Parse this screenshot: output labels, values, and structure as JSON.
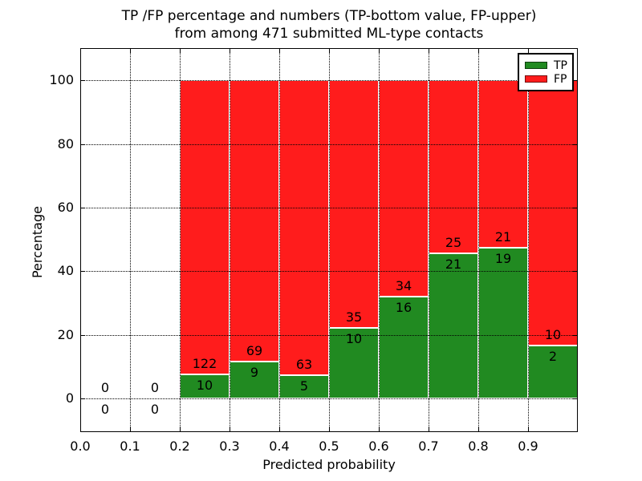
{
  "chart_data": {
    "type": "bar",
    "stacked": true,
    "title_line1": "TP /FP percentage and numbers (TP-bottom value, FP-upper)",
    "title_line2": "from among 471 submitted ML-type contacts",
    "xlabel": "Predicted probability",
    "ylabel": "Percentage",
    "total_contacts": 471,
    "xlim": [
      0.0,
      1.0
    ],
    "ylim": [
      -10.6,
      110.2
    ],
    "bin_width": 0.1,
    "grid": true,
    "legend_position": "upper right",
    "bar_edge_color": "#ffffff",
    "x_tick_values": [
      0.0,
      0.1,
      0.2,
      0.3,
      0.4,
      0.5,
      0.6,
      0.7,
      0.8,
      0.9
    ],
    "x_tick_labels": [
      "0.0",
      "0.1",
      "0.2",
      "0.3",
      "0.4",
      "0.5",
      "0.6",
      "0.7",
      "0.8",
      "0.9"
    ],
    "y_tick_values": [
      0,
      20,
      40,
      60,
      80,
      100
    ],
    "series": [
      {
        "name": "TP",
        "color": "#218a21",
        "counts": [
          0,
          0,
          10,
          9,
          5,
          10,
          16,
          21,
          19,
          2
        ]
      },
      {
        "name": "FP",
        "color": "#ff1c1c",
        "counts": [
          0,
          0,
          122,
          69,
          63,
          35,
          34,
          25,
          21,
          10
        ]
      }
    ],
    "bins": [
      {
        "start": 0.0,
        "tp": 0,
        "fp": 0
      },
      {
        "start": 0.1,
        "tp": 0,
        "fp": 0
      },
      {
        "start": 0.2,
        "tp": 10,
        "fp": 122
      },
      {
        "start": 0.3,
        "tp": 9,
        "fp": 69
      },
      {
        "start": 0.4,
        "tp": 5,
        "fp": 63
      },
      {
        "start": 0.5,
        "tp": 10,
        "fp": 35
      },
      {
        "start": 0.6,
        "tp": 16,
        "fp": 34
      },
      {
        "start": 0.7,
        "tp": 21,
        "fp": 25
      },
      {
        "start": 0.8,
        "tp": 19,
        "fp": 21
      },
      {
        "start": 0.9,
        "tp": 2,
        "fp": 10
      }
    ]
  }
}
